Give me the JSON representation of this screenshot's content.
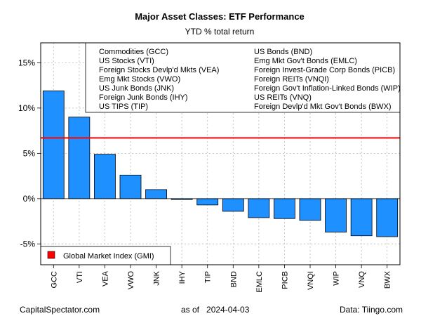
{
  "chart_data": {
    "type": "bar",
    "title": "Major Asset Classes: ETF Performance",
    "subtitle": "YTD % total return",
    "categories": [
      "GCC",
      "VTI",
      "VEA",
      "VWO",
      "JNK",
      "IHY",
      "TIP",
      "BND",
      "EMLC",
      "PICB",
      "VNQI",
      "WIP",
      "VNQ",
      "BWX"
    ],
    "values": [
      11.9,
      9.0,
      4.9,
      2.6,
      1.0,
      -0.1,
      -0.7,
      -1.4,
      -2.1,
      -2.2,
      -2.4,
      -3.7,
      -4.1,
      -4.2
    ],
    "ylim": [
      -7.3,
      17.2
    ],
    "yticks": [
      -5,
      0,
      5,
      10,
      15
    ],
    "ytick_labels": [
      "-5%",
      "0%",
      "5%",
      "10%",
      "15%"
    ],
    "reference_line": {
      "label": "Global Market Index (GMI)",
      "value": 6.7,
      "color": "#ff0000"
    },
    "bar_color": "#1e90ff",
    "grid": true,
    "legend": {
      "placement": "top-right",
      "entries": [
        "Commodities (GCC)",
        "US Stocks (VTI)",
        "Foreign Stocks Devlp'd Mkts (VEA)",
        "Emg Mkt Stocks (VWO)",
        "US Junk Bonds (JNK)",
        "Foreign Junk Bonds (IHY)",
        "US TIPS (TIP)",
        "US Bonds (BND)",
        "Emg Mkt Gov't Bonds (EMLC)",
        "Foreign Invest-Grade Corp Bonds (PICB)",
        "Foreign REITs (VNQI)",
        "Foreign Gov't Inflation-Linked Bonds (WIP)",
        "US REITs (VNQ)",
        "Foreign Devlp'd Mkt Gov't Bonds (BWX)"
      ]
    }
  },
  "footer": {
    "left": "CapitalSpectator.com",
    "center": "as of   2024-04-03",
    "right": "Data: Tiingo.com"
  }
}
